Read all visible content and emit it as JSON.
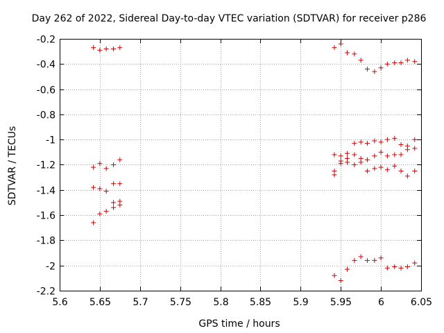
{
  "chart_data": {
    "type": "scatter",
    "title": "Day 262 of 2022, Sidereal Day-to-day VTEC variation (SDTVAR) for receiver p286",
    "xlabel": "GPS time / hours",
    "ylabel": "SDTVAR / TECUs",
    "xlim": [
      5.6,
      6.05
    ],
    "ylim": [
      -2.2,
      -0.2
    ],
    "grid": true,
    "marker": "+",
    "marker_color": "#cc0000",
    "x_ticks": [
      5.6,
      5.65,
      5.7,
      5.75,
      5.8,
      5.85,
      5.9,
      5.95,
      6,
      6.05
    ],
    "x_tick_labels": [
      "5.6",
      "5.65",
      "5.7",
      "5.75",
      "5.8",
      "5.85",
      "5.9",
      "5.95",
      "6",
      "6.05"
    ],
    "y_ticks": [
      -0.2,
      -0.4,
      -0.6,
      -0.8,
      -1,
      -1.2,
      -1.4,
      -1.6,
      -1.8,
      -2,
      -2.2
    ],
    "y_tick_labels": [
      "-0.2",
      "-0.4",
      "-0.6",
      "-0.8",
      "-1",
      "-1.2",
      "-1.4",
      "-1.6",
      "-1.8",
      "-2",
      "-2.2"
    ],
    "series": [
      {
        "name": "SDTVAR",
        "points": [
          [
            5.642,
            -0.27
          ],
          [
            5.65,
            -0.29
          ],
          [
            5.658,
            -0.28
          ],
          [
            5.667,
            -0.28
          ],
          [
            5.675,
            -0.27
          ],
          [
            5.642,
            -1.22
          ],
          [
            5.65,
            -1.19
          ],
          [
            5.658,
            -1.23
          ],
          [
            5.667,
            -1.2
          ],
          [
            5.675,
            -1.16
          ],
          [
            5.642,
            -1.38
          ],
          [
            5.65,
            -1.39
          ],
          [
            5.658,
            -1.41
          ],
          [
            5.667,
            -1.35
          ],
          [
            5.675,
            -1.35
          ],
          [
            5.642,
            -1.66
          ],
          [
            5.65,
            -1.59
          ],
          [
            5.658,
            -1.57
          ],
          [
            5.667,
            -1.54
          ],
          [
            5.667,
            -1.5
          ],
          [
            5.675,
            -1.52
          ],
          [
            5.675,
            -1.49
          ],
          [
            5.942,
            -0.27
          ],
          [
            5.95,
            -0.24
          ],
          [
            5.958,
            -0.31
          ],
          [
            5.967,
            -0.32
          ],
          [
            5.975,
            -0.37
          ],
          [
            5.983,
            -0.44
          ],
          [
            5.992,
            -0.46
          ],
          [
            6.0,
            -0.43
          ],
          [
            6.008,
            -0.4
          ],
          [
            6.017,
            -0.39
          ],
          [
            6.025,
            -0.39
          ],
          [
            6.033,
            -0.37
          ],
          [
            6.042,
            -0.38
          ],
          [
            5.942,
            -1.12
          ],
          [
            5.95,
            -1.13
          ],
          [
            5.958,
            -1.11
          ],
          [
            5.967,
            -1.03
          ],
          [
            5.975,
            -1.02
          ],
          [
            5.983,
            -1.03
          ],
          [
            5.992,
            -1.01
          ],
          [
            6.0,
            -1.02
          ],
          [
            6.008,
            -1.0
          ],
          [
            6.017,
            -0.99
          ],
          [
            6.025,
            -1.04
          ],
          [
            6.033,
            -1.05
          ],
          [
            6.042,
            -1.0
          ],
          [
            5.942,
            -1.25
          ],
          [
            5.942,
            -1.28
          ],
          [
            5.95,
            -1.17
          ],
          [
            5.95,
            -1.19
          ],
          [
            5.958,
            -1.15
          ],
          [
            5.958,
            -1.18
          ],
          [
            5.967,
            -1.12
          ],
          [
            5.967,
            -1.2
          ],
          [
            5.975,
            -1.15
          ],
          [
            5.975,
            -1.18
          ],
          [
            5.983,
            -1.16
          ],
          [
            5.983,
            -1.25
          ],
          [
            5.992,
            -1.13
          ],
          [
            5.992,
            -1.23
          ],
          [
            6.0,
            -1.1
          ],
          [
            6.0,
            -1.22
          ],
          [
            6.008,
            -1.13
          ],
          [
            6.008,
            -1.24
          ],
          [
            6.017,
            -1.12
          ],
          [
            6.017,
            -1.21
          ],
          [
            6.025,
            -1.12
          ],
          [
            6.025,
            -1.25
          ],
          [
            6.033,
            -1.08
          ],
          [
            6.033,
            -1.29
          ],
          [
            6.042,
            -1.07
          ],
          [
            6.042,
            -1.25
          ],
          [
            5.942,
            -2.08
          ],
          [
            5.95,
            -2.12
          ],
          [
            5.958,
            -2.03
          ],
          [
            5.967,
            -1.96
          ],
          [
            5.975,
            -1.93
          ],
          [
            5.983,
            -1.96
          ],
          [
            5.992,
            -1.96
          ],
          [
            6.0,
            -1.94
          ],
          [
            6.008,
            -2.02
          ],
          [
            6.017,
            -2.01
          ],
          [
            6.025,
            -2.02
          ],
          [
            6.033,
            -2.01
          ],
          [
            6.042,
            -1.98
          ]
        ]
      }
    ]
  }
}
